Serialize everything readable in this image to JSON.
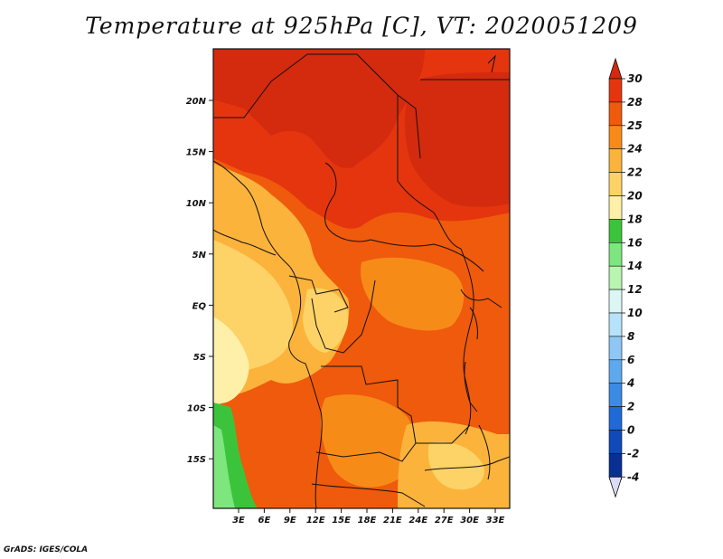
{
  "title": "Temperature at 925hPa [C], VT: 2020051209",
  "credit": "GrADS: IGES/COLA",
  "map": {
    "lon_ticks": [
      "3E",
      "6E",
      "9E",
      "12E",
      "15E",
      "18E",
      "21E",
      "24E",
      "27E",
      "30E",
      "33E"
    ],
    "lat_ticks": [
      "20N",
      "15N",
      "10N",
      "5N",
      "EQ",
      "5S",
      "10S",
      "15S"
    ]
  },
  "colorbar": {
    "labels": [
      "30",
      "28",
      "25",
      "24",
      "22",
      "20",
      "18",
      "16",
      "14",
      "12",
      "10",
      "8",
      "6",
      "4",
      "2",
      "0",
      "-2",
      "-4"
    ],
    "colors": {
      "above_30": "#d42a0e",
      "28_30": "#e4350f",
      "25_28": "#ef5a0c",
      "24_25": "#f78b18",
      "22_24": "#fbb33b",
      "20_22": "#fdd267",
      "18_20": "#fef0a8",
      "16_18": "#3bc43b",
      "14_16": "#7ee67e",
      "12_14": "#b8f5b0",
      "10_12": "#dcf5f5",
      "8_10": "#b7e2fb",
      "6_8": "#8ec6f5",
      "4_6": "#5ea9ee",
      "2_4": "#3b8ae3",
      "0_2": "#1f69d8",
      "-2_0": "#1049b8",
      "-4_-2": "#082f94",
      "below_-4": "#07106a",
      "under": "#dcdcf5"
    }
  }
}
